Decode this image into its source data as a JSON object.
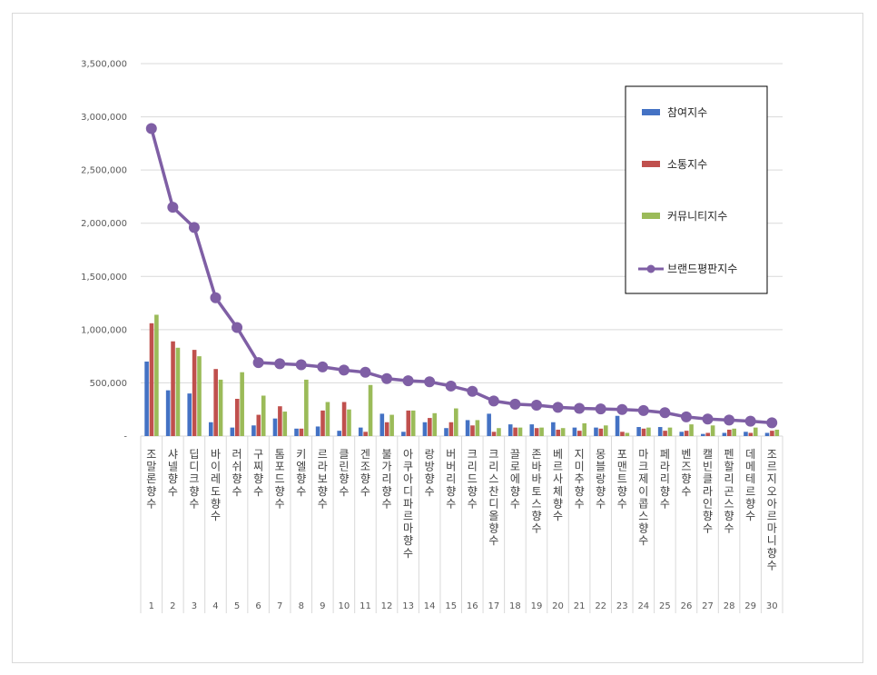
{
  "chart_data": {
    "type": "bar",
    "categories": [
      "조말론향수",
      "샤넬향수",
      "딥디크향수",
      "바이레도향수",
      "러쉬향수",
      "구찌향수",
      "톰포드향수",
      "키엘향수",
      "르라보향수",
      "클린향수",
      "겐조향수",
      "불가리향수",
      "아쿠아디파르마향수",
      "랑방향수",
      "버버리향수",
      "크리드향수",
      "크리스찬디올향수",
      "끌로에향수",
      "존바바토스향수",
      "베르사체향수",
      "지미추향수",
      "몽블랑향수",
      "포맨트향수",
      "마크제이콥스향수",
      "페라리향수",
      "벤즈향수",
      "캘빈클라인향수",
      "펜할리곤스향수",
      "데메테르향수",
      "조르지오아르마니향수"
    ],
    "index": [
      "1",
      "2",
      "3",
      "4",
      "5",
      "6",
      "7",
      "8",
      "9",
      "10",
      "11",
      "12",
      "13",
      "14",
      "15",
      "16",
      "17",
      "18",
      "19",
      "20",
      "21",
      "22",
      "23",
      "24",
      "25",
      "26",
      "27",
      "28",
      "29",
      "30"
    ],
    "series": [
      {
        "name": "참여지수",
        "color": "#4472c4",
        "values": [
          700000,
          430000,
          400000,
          130000,
          80000,
          100000,
          165000,
          70000,
          90000,
          50000,
          80000,
          210000,
          40000,
          130000,
          75000,
          150000,
          210000,
          110000,
          110000,
          130000,
          80000,
          80000,
          190000,
          85000,
          85000,
          40000,
          20000,
          30000,
          40000,
          30000
        ]
      },
      {
        "name": "소통지수",
        "color": "#c0504d",
        "values": [
          1060000,
          890000,
          810000,
          630000,
          350000,
          200000,
          280000,
          70000,
          240000,
          320000,
          40000,
          130000,
          240000,
          170000,
          130000,
          100000,
          40000,
          80000,
          75000,
          60000,
          50000,
          70000,
          40000,
          70000,
          50000,
          50000,
          30000,
          60000,
          30000,
          50000
        ]
      },
      {
        "name": "커뮤니티지수",
        "color": "#9bbb59",
        "values": [
          1140000,
          830000,
          750000,
          530000,
          600000,
          380000,
          230000,
          530000,
          320000,
          250000,
          480000,
          200000,
          240000,
          215000,
          260000,
          150000,
          75000,
          80000,
          80000,
          75000,
          120000,
          100000,
          30000,
          80000,
          80000,
          110000,
          100000,
          70000,
          80000,
          60000
        ]
      }
    ],
    "line": {
      "name": "브랜드평판지수",
      "color": "#7f5fa5",
      "values": [
        2890000,
        2150000,
        1960000,
        1300000,
        1020000,
        690000,
        680000,
        670000,
        650000,
        620000,
        600000,
        540000,
        520000,
        510000,
        470000,
        420000,
        330000,
        300000,
        290000,
        270000,
        260000,
        255000,
        250000,
        240000,
        220000,
        180000,
        160000,
        150000,
        140000,
        125000
      ]
    },
    "ylim": [
      0,
      3500000
    ],
    "yticks": [
      0,
      500000,
      1000000,
      1500000,
      2000000,
      2500000,
      3000000,
      3500000
    ],
    "ytick_labels": [
      "-",
      "500,000",
      "1,000,000",
      "1,500,000",
      "2,000,000",
      "2,500,000",
      "3,000,000",
      "3,500,000"
    ],
    "grid": true,
    "legend_position": "top-right"
  }
}
